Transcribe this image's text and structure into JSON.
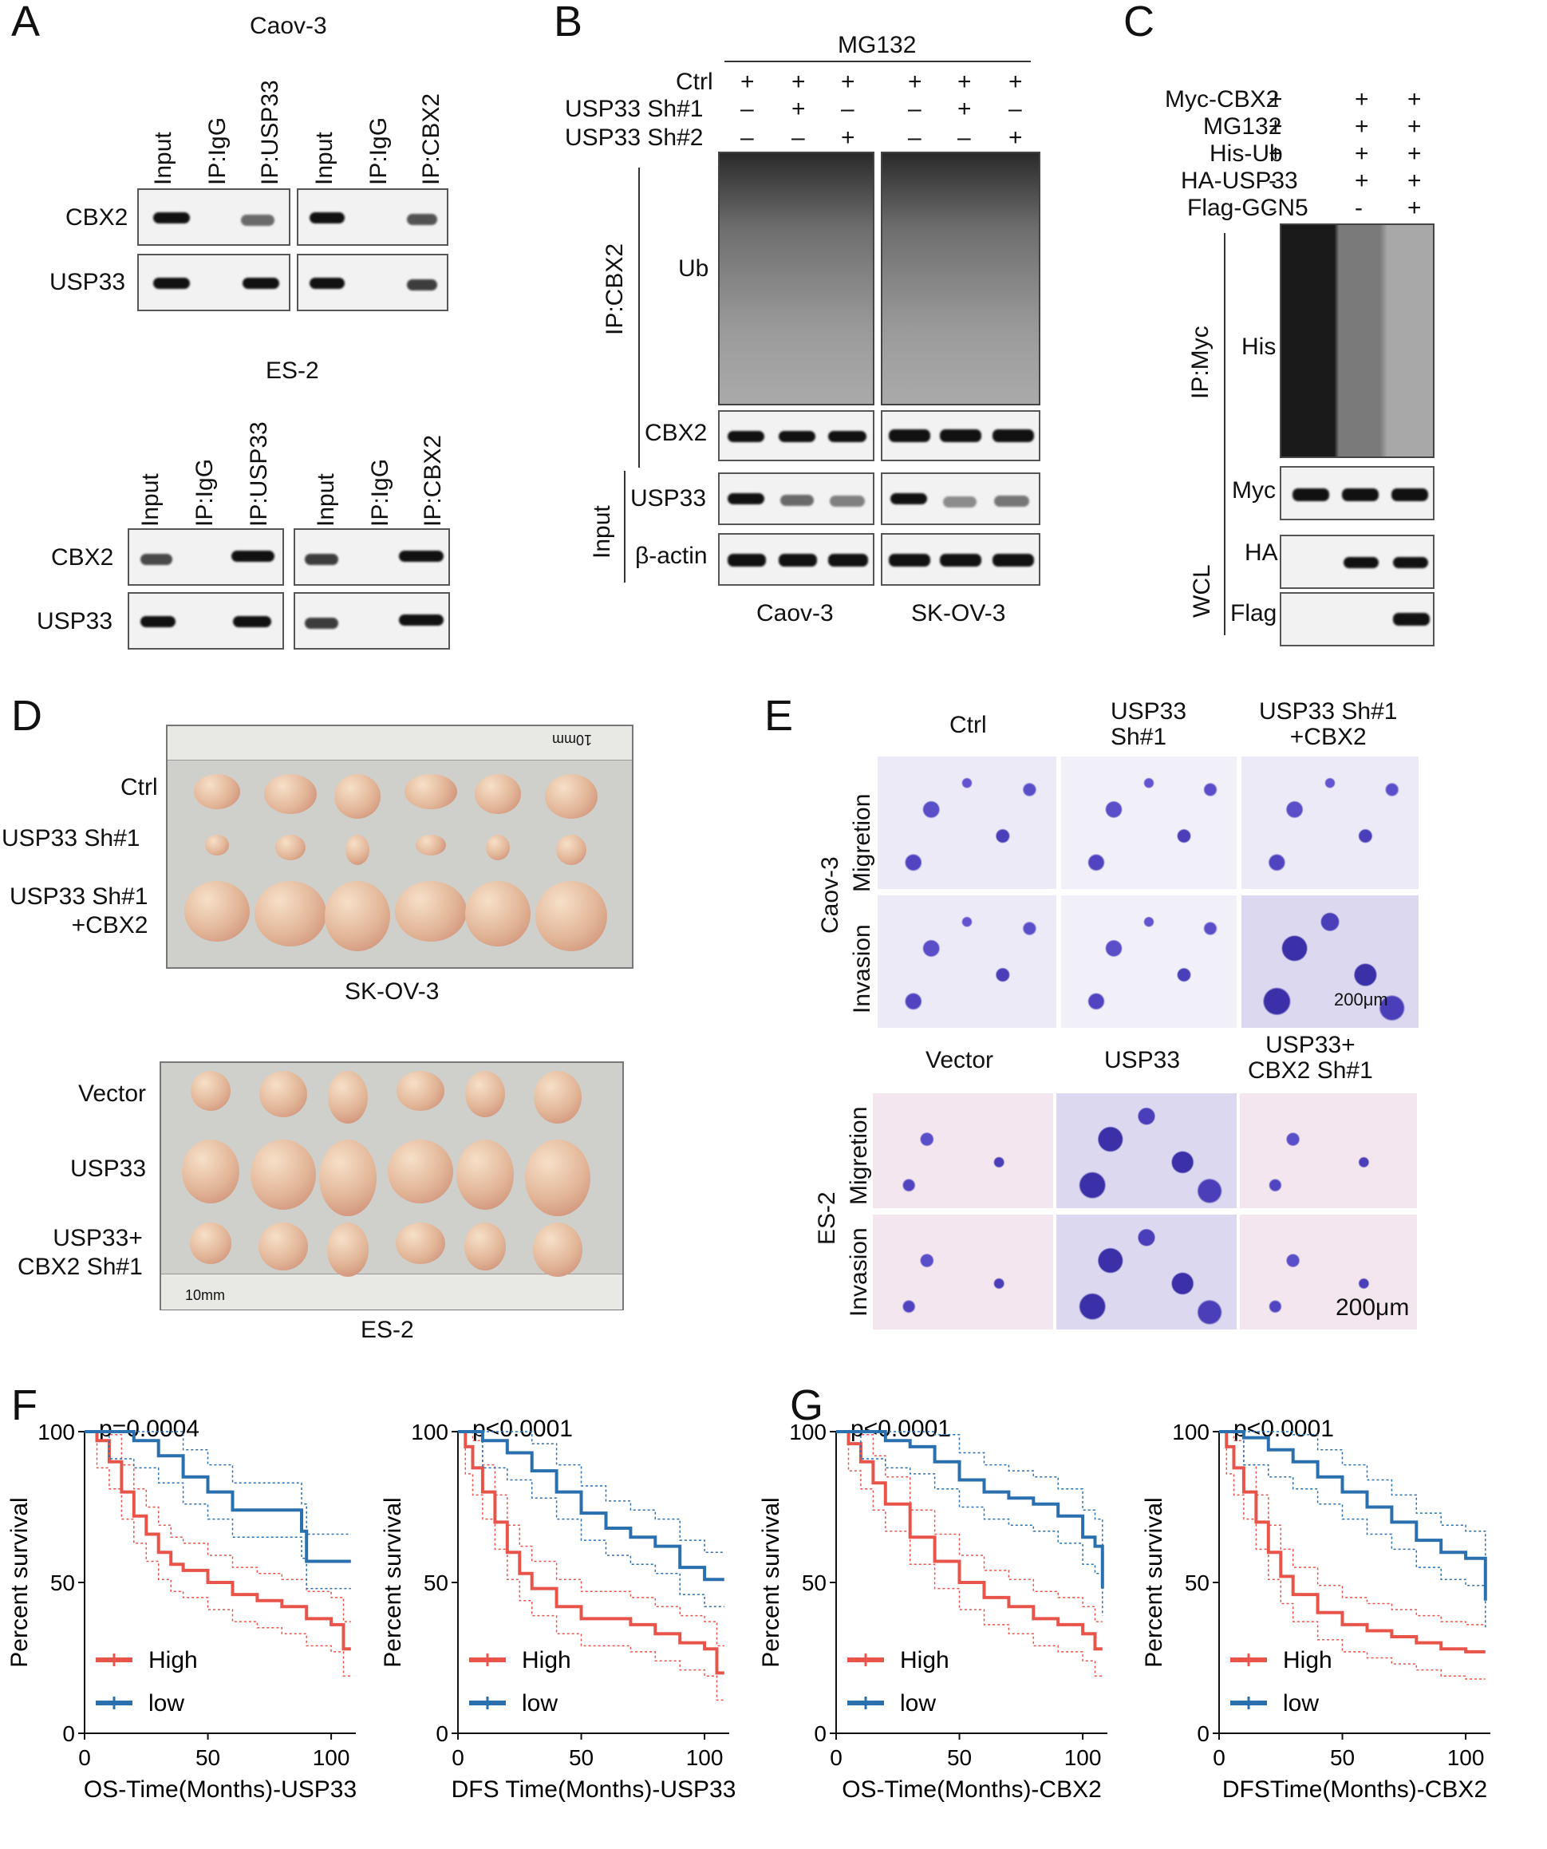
{
  "panels": {
    "A": "A",
    "B": "B",
    "C": "C",
    "D": "D",
    "E": "E",
    "F": "F",
    "G": "G"
  },
  "panelA": {
    "caov3_title": "Caov-3",
    "es2_title": "ES-2",
    "lanes": [
      "Input",
      "IP:IgG",
      "IP:USP33",
      "Input",
      "IP:IgG",
      "IP:CBX2"
    ],
    "rows": [
      "CBX2",
      "USP33"
    ]
  },
  "panelB": {
    "treatment": "MG132",
    "conditions": [
      "Ctrl",
      "USP33 Sh#1",
      "USP33 Sh#2"
    ],
    "signs": [
      [
        "+",
        "+",
        "+",
        "+",
        "+",
        "+"
      ],
      [
        "–",
        "+",
        "–",
        "–",
        "+",
        "–"
      ],
      [
        "–",
        "–",
        "+",
        "–",
        "–",
        "+"
      ]
    ],
    "ip_label": "IP:CBX2",
    "input_label": "Input",
    "blots": [
      "Ub",
      "CBX2",
      "USP33",
      "β-actin"
    ],
    "cell_lines": [
      "Caov-3",
      "SK-OV-3"
    ]
  },
  "panelC": {
    "conditions": [
      "Myc-CBX2",
      "MG132",
      "His-Ub",
      "HA-USP33",
      "Flag-GCN5"
    ],
    "signs": [
      [
        "+",
        "+",
        "+"
      ],
      [
        "+",
        "+",
        "+"
      ],
      [
        "+",
        "+",
        "+"
      ],
      [
        "-",
        "+",
        "+"
      ],
      [
        "-",
        "-",
        "+"
      ]
    ],
    "ip_label": "IP:Myc",
    "wcl_label": "WCL",
    "blots": [
      "His",
      "Myc",
      "HA",
      "Flag"
    ]
  },
  "panelD": {
    "skov3_rows": [
      "Ctrl",
      "USP33 Sh#1",
      "USP33 Sh#1\n+CBX2"
    ],
    "skov3_caption": "SK-OV-3",
    "es2_rows": [
      "Vector",
      "USP33",
      "USP33+\nCBX2 Sh#1"
    ],
    "es2_caption": "ES-2",
    "ruler_label": "10mm"
  },
  "panelE": {
    "caov3_cols": [
      "Ctrl",
      "USP33\nSh#1",
      "USP33 Sh#1\n+CBX2"
    ],
    "es2_cols": [
      "Vector",
      "USP33",
      "USP33+\nCBX2 Sh#1"
    ],
    "cell_lines": [
      "Caov-3",
      "ES-2"
    ],
    "assays": [
      "Migretion",
      "Invasion"
    ],
    "scale": "200μm"
  },
  "colors": {
    "high": "#e8544a",
    "low": "#2a6fae"
  },
  "chart_data": [
    {
      "type": "line",
      "panel": "F",
      "pvalue": "p=0.0004",
      "xlabel": "OS-Time(Months)-USP33",
      "ylabel": "Percent survival",
      "xlim": [
        0,
        110
      ],
      "ylim": [
        0,
        100
      ],
      "xticks": [
        0,
        50,
        100
      ],
      "yticks": [
        0,
        50,
        100
      ],
      "series": [
        {
          "name": "High",
          "x": [
            0,
            5,
            10,
            15,
            20,
            25,
            30,
            35,
            40,
            50,
            60,
            70,
            80,
            90,
            100,
            105,
            108
          ],
          "y": [
            100,
            97,
            90,
            80,
            72,
            66,
            60,
            56,
            54,
            50,
            46,
            44,
            42,
            38,
            36,
            28,
            28
          ]
        },
        {
          "name": "low",
          "x": [
            0,
            10,
            20,
            30,
            40,
            50,
            60,
            70,
            80,
            88,
            90,
            100,
            108
          ],
          "y": [
            100,
            100,
            97,
            92,
            85,
            80,
            74,
            74,
            74,
            67,
            57,
            57,
            57
          ]
        }
      ]
    },
    {
      "type": "line",
      "panel": "F",
      "pvalue": "p<0.0001",
      "xlabel": "DFS Time(Months)-USP33",
      "ylabel": "Percent survival",
      "xlim": [
        0,
        110
      ],
      "ylim": [
        0,
        100
      ],
      "xticks": [
        0,
        50,
        100
      ],
      "yticks": [
        0,
        50,
        100
      ],
      "series": [
        {
          "name": "High",
          "x": [
            0,
            3,
            6,
            10,
            15,
            20,
            25,
            30,
            40,
            50,
            60,
            70,
            80,
            90,
            100,
            105,
            108
          ],
          "y": [
            100,
            95,
            88,
            80,
            70,
            60,
            53,
            48,
            42,
            38,
            38,
            36,
            33,
            30,
            28,
            20,
            20
          ]
        },
        {
          "name": "low",
          "x": [
            0,
            10,
            20,
            30,
            40,
            50,
            60,
            70,
            80,
            90,
            100,
            108
          ],
          "y": [
            100,
            97,
            93,
            87,
            80,
            73,
            68,
            65,
            62,
            55,
            51,
            51
          ]
        }
      ]
    },
    {
      "type": "line",
      "panel": "G",
      "pvalue": "p<0.0001",
      "xlabel": "OS-Time(Months)-CBX2",
      "ylabel": "Percent survival",
      "xlim": [
        0,
        110
      ],
      "ylim": [
        0,
        100
      ],
      "xticks": [
        0,
        50,
        100
      ],
      "yticks": [
        0,
        50,
        100
      ],
      "series": [
        {
          "name": "High",
          "x": [
            0,
            5,
            10,
            15,
            20,
            30,
            40,
            50,
            60,
            70,
            80,
            90,
            100,
            105,
            108
          ],
          "y": [
            100,
            96,
            90,
            83,
            76,
            65,
            57,
            50,
            45,
            42,
            38,
            36,
            33,
            28,
            28
          ]
        },
        {
          "name": "low",
          "x": [
            0,
            10,
            20,
            30,
            40,
            50,
            60,
            70,
            80,
            90,
            100,
            105,
            108
          ],
          "y": [
            100,
            100,
            97,
            95,
            90,
            84,
            80,
            78,
            76,
            72,
            65,
            62,
            48
          ]
        }
      ]
    },
    {
      "type": "line",
      "panel": "G",
      "pvalue": "p<0.0001",
      "xlabel": "DFSTime(Months)-CBX2",
      "ylabel": "Percent survival",
      "xlim": [
        0,
        110
      ],
      "ylim": [
        0,
        100
      ],
      "xticks": [
        0,
        50,
        100
      ],
      "yticks": [
        0,
        50,
        100
      ],
      "series": [
        {
          "name": "High",
          "x": [
            0,
            3,
            6,
            10,
            15,
            20,
            25,
            30,
            40,
            50,
            60,
            70,
            80,
            90,
            100,
            108
          ],
          "y": [
            100,
            95,
            88,
            80,
            70,
            60,
            52,
            46,
            40,
            36,
            34,
            32,
            30,
            28,
            27,
            27
          ]
        },
        {
          "name": "low",
          "x": [
            0,
            10,
            20,
            30,
            40,
            50,
            60,
            70,
            80,
            90,
            100,
            108
          ],
          "y": [
            100,
            98,
            94,
            90,
            85,
            80,
            75,
            70,
            64,
            60,
            58,
            44
          ]
        }
      ]
    }
  ]
}
